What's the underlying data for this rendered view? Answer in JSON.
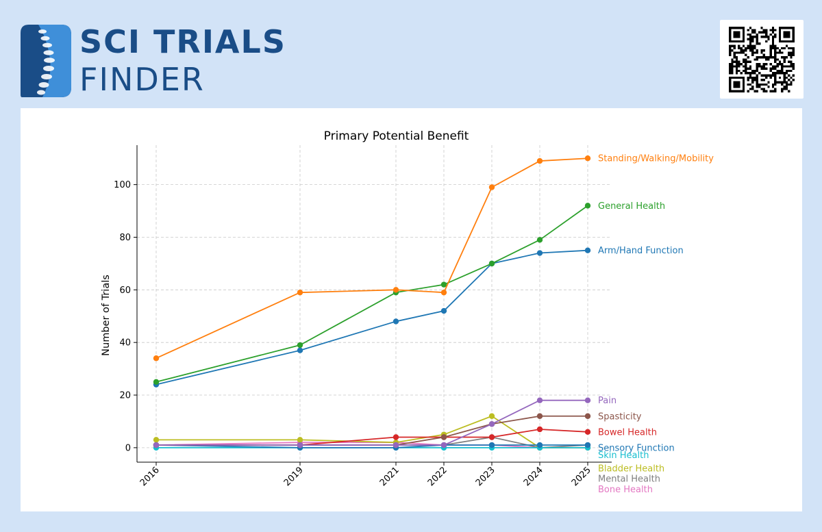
{
  "brand": {
    "line1": "SCI TRIALS",
    "line2": "FINDER",
    "color": "#1a4d87"
  },
  "qr": {
    "icon": "qr-code-icon"
  },
  "chart_data": {
    "type": "line",
    "title": "Primary Potential Benefit",
    "xlabel": "",
    "ylabel": "Number of Trials",
    "x": [
      2016,
      2019,
      2021,
      2022,
      2023,
      2024,
      2025
    ],
    "x_tick_labels": [
      "2016",
      "2019",
      "2021",
      "2022",
      "2023",
      "2024",
      "2025"
    ],
    "y_ticks": [
      0,
      20,
      40,
      60,
      80,
      100
    ],
    "xlim": [
      2015.6,
      2025.5
    ],
    "ylim": [
      -5.5,
      115
    ],
    "grid": true,
    "legend": "direct labels at right end of each line",
    "series": [
      {
        "name": "Standing/Walking/Mobility",
        "color": "#ff7f0e",
        "values": [
          34,
          59,
          60,
          59,
          99,
          109,
          110
        ],
        "label_y": 110
      },
      {
        "name": "General Health",
        "color": "#2ca02c",
        "values": [
          25,
          39,
          59,
          62,
          70,
          79,
          92
        ],
        "label_y": 92
      },
      {
        "name": "Arm/Hand Function",
        "color": "#1f77b4",
        "values": [
          24,
          37,
          48,
          52,
          70,
          74,
          75
        ],
        "label_y": 75
      },
      {
        "name": "Pain",
        "color": "#9467bd",
        "values": [
          1,
          1,
          1,
          1,
          9,
          18,
          18
        ],
        "label_y": 18
      },
      {
        "name": "Spasticity",
        "color": "#8c564b",
        "values": [
          1,
          1,
          1,
          4,
          9,
          12,
          12
        ],
        "label_y": 12
      },
      {
        "name": "Bowel Health",
        "color": "#d62728",
        "values": [
          1,
          1,
          4,
          4,
          4,
          7,
          6
        ],
        "label_y": 6
      },
      {
        "name": "Sensory Function",
        "color": "#1f77b4",
        "values": [
          1,
          0,
          0,
          1,
          1,
          1,
          1
        ],
        "label_y": 0
      },
      {
        "name": "Skin Health",
        "color": "#17becf",
        "values": [
          0,
          0,
          0,
          0,
          0,
          0,
          0
        ],
        "label_y": -2.8
      },
      {
        "name": "Bladder Health",
        "color": "#bcbd22",
        "values": [
          3,
          3,
          2,
          5,
          12,
          0,
          0
        ],
        "label_y": -7.8
      },
      {
        "name": "Mental Health",
        "color": "#7f7f7f",
        "values": [
          1,
          1,
          1,
          1,
          4,
          0,
          1
        ],
        "label_y": -11.8
      },
      {
        "name": "Bone Health",
        "color": "#e377c2",
        "values": [
          1,
          2,
          2,
          1,
          1,
          0,
          0
        ],
        "label_y": -15.8
      }
    ]
  }
}
